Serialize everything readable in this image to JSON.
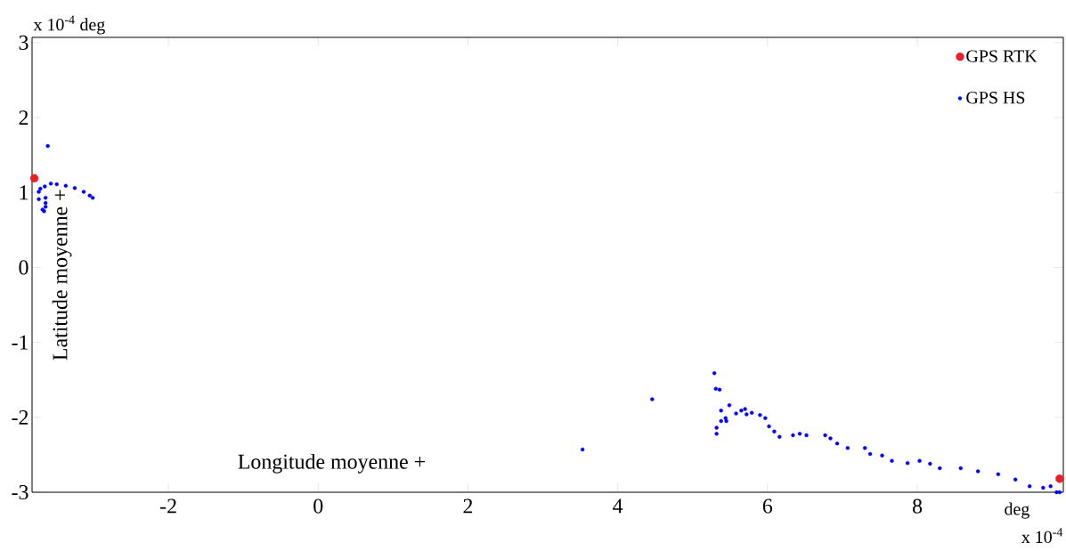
{
  "chart_data": {
    "type": "scatter",
    "ylabel": "x 10$^{-4}$ deg",
    "xlabel": "deg",
    "annotations": [
      "x 10$^{-4}$",
      "Longitude moyenne +",
      "Latitude moyenne +"
    ],
    "xlim": [
      -3.82,
      9.95
    ],
    "ylim": [
      -3,
      3.07
    ],
    "xticks": [
      -2,
      0,
      2,
      4,
      6,
      8
    ],
    "yticks": [
      -3,
      -2,
      -1,
      0,
      1,
      2,
      3
    ],
    "legend": "top right",
    "grid": false,
    "series": [
      {
        "name": "GPS RTK",
        "color": "#e8202a",
        "x": [
          -3.79,
          9.9
        ],
        "values": [
          1.19,
          -2.82
        ]
      },
      {
        "name": "GPS HS",
        "color": "#0000ff",
        "x": [
          -3.61,
          -3.73,
          -3.71,
          -3.65,
          -3.57,
          -3.49,
          -3.37,
          -3.25,
          -3.13,
          -3.05,
          -3.01,
          -3.73,
          -3.68,
          -3.66,
          -3.64,
          -3.64,
          -3.64,
          3.53,
          4.46,
          5.29,
          5.31,
          5.36,
          5.38,
          5.49,
          5.32,
          5.32,
          5.38,
          5.44,
          5.45,
          5.58,
          5.65,
          5.7,
          5.72,
          5.79,
          5.9,
          5.97,
          6.02,
          6.09,
          6.16,
          6.34,
          6.43,
          6.52,
          6.77,
          6.84,
          6.93,
          7.07,
          7.3,
          7.37,
          7.53,
          7.66,
          7.87,
          8.03,
          8.17,
          8.3,
          8.58,
          8.81,
          9.08,
          9.31,
          9.5,
          9.68,
          9.78,
          9.86,
          9.9
        ],
        "values": [
          1.62,
          1.01,
          1.05,
          1.08,
          1.12,
          1.11,
          1.09,
          1.06,
          1.01,
          0.96,
          0.93,
          0.91,
          0.77,
          0.75,
          0.81,
          0.86,
          0.93,
          -2.43,
          -1.76,
          -1.41,
          -1.62,
          -1.63,
          -1.91,
          -1.84,
          -2.22,
          -2.14,
          -2.05,
          -2.01,
          -2.05,
          -1.95,
          -1.91,
          -1.89,
          -1.96,
          -1.94,
          -1.97,
          -2.01,
          -2.12,
          -2.19,
          -2.26,
          -2.24,
          -2.22,
          -2.24,
          -2.24,
          -2.28,
          -2.35,
          -2.41,
          -2.41,
          -2.49,
          -2.51,
          -2.58,
          -2.61,
          -2.58,
          -2.62,
          -2.68,
          -2.68,
          -2.72,
          -2.76,
          -2.83,
          -2.92,
          -2.94,
          -2.92,
          -3.0,
          -3.0
        ]
      }
    ]
  }
}
